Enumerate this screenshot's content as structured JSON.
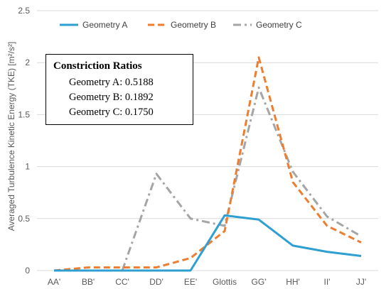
{
  "chart_data": {
    "type": "line",
    "categories": [
      "AA'",
      "BB'",
      "CC'",
      "DD'",
      "EE'",
      "Glottis",
      "GG'",
      "HH'",
      "II'",
      "JJ'"
    ],
    "ylabel": "Averaged Turbulence Kinetic Energy (TKE) [m²/s²]",
    "ylim": [
      0,
      2.5
    ],
    "yticks": [
      "0",
      "0.5",
      "1",
      "1.5",
      "2",
      "2.5"
    ],
    "grid": true,
    "legend_position": "top",
    "series": [
      {
        "name": "Geometry A",
        "color": "#2e9fd0",
        "style": "solid",
        "values": [
          0,
          0,
          0,
          0,
          0,
          0.53,
          0.49,
          0.24,
          0.18,
          0.14
        ]
      },
      {
        "name": "Geometry B",
        "color": "#ed7d31",
        "style": "dash",
        "values": [
          0,
          0.03,
          0.03,
          0.03,
          0.12,
          0.38,
          2.05,
          0.85,
          0.43,
          0.27
        ]
      },
      {
        "name": "Geometry C",
        "color": "#a5a5a5",
        "style": "dashdot",
        "values": [
          0,
          0,
          0,
          0.93,
          0.5,
          0.43,
          1.76,
          0.95,
          0.52,
          0.33
        ]
      }
    ],
    "annotation": {
      "title": "Constriction Ratios",
      "lines": [
        "Geometry A: 0.5188",
        "Geometry B: 0.1892",
        "Geometry C: 0.1750"
      ]
    }
  }
}
